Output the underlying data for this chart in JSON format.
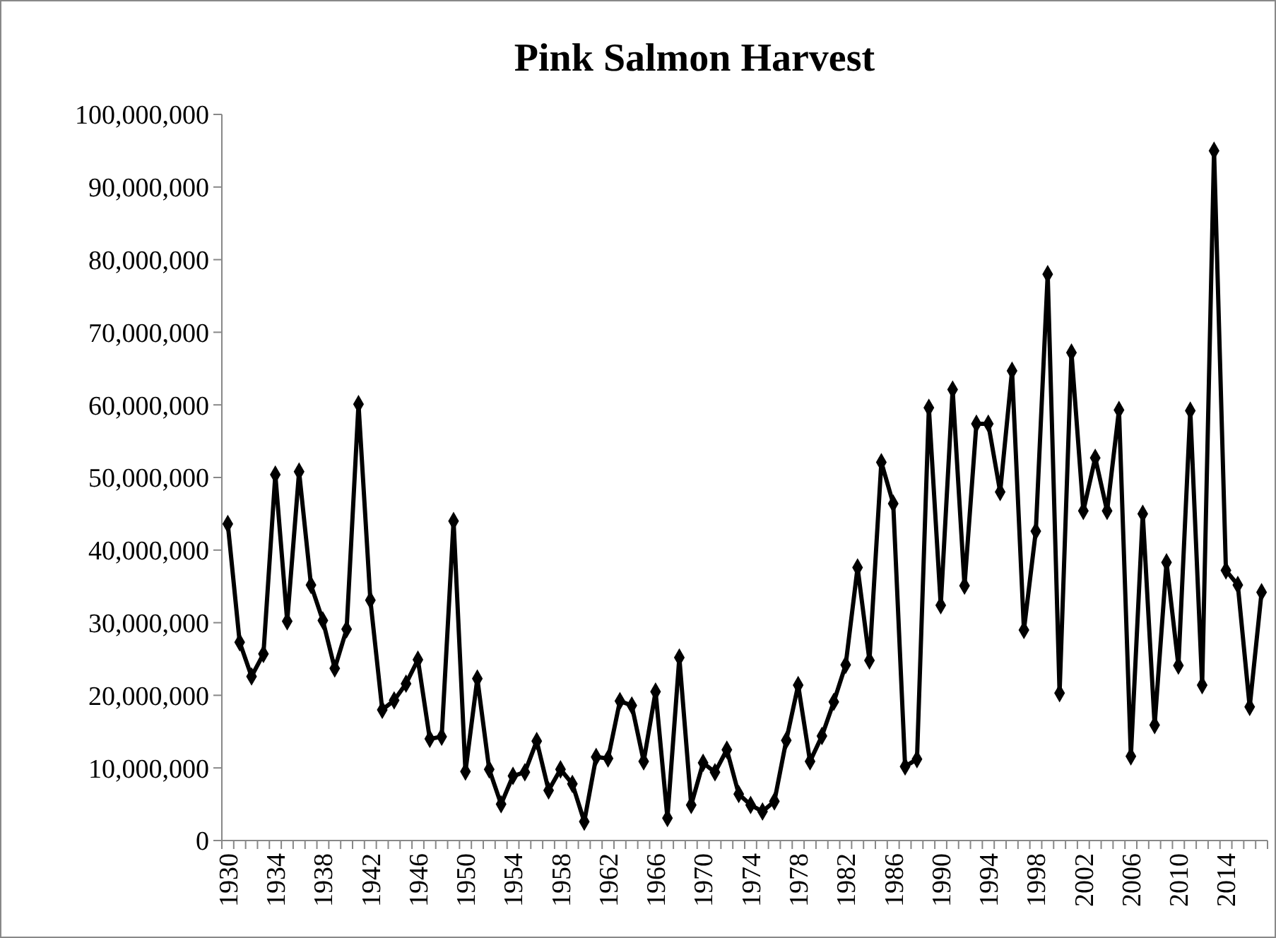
{
  "chart_data": {
    "type": "line",
    "title": "Pink Salmon Harvest",
    "categories": [
      "1930",
      null,
      null,
      null,
      "1934",
      null,
      null,
      null,
      "1938",
      null,
      null,
      null,
      "1942",
      null,
      null,
      null,
      "1946",
      null,
      null,
      null,
      "1950",
      null,
      null,
      null,
      "1954",
      null,
      null,
      null,
      "1958",
      null,
      null,
      null,
      "1962",
      null,
      null,
      null,
      "1966",
      null,
      null,
      null,
      "1970",
      null,
      null,
      null,
      "1974",
      null,
      null,
      null,
      "1978",
      null,
      null,
      null,
      "1982",
      null,
      null,
      null,
      "1986",
      null,
      null,
      null,
      "1990",
      null,
      null,
      null,
      "1994",
      null,
      null,
      null,
      "1998",
      null,
      null,
      null,
      "2002",
      null,
      null,
      null,
      "2006",
      null,
      null,
      null,
      "2010",
      null,
      null,
      null,
      "2014",
      null,
      null,
      null
    ],
    "series": [
      {
        "color": "#000000",
        "values": [
          43600000,
          27300000,
          22600000,
          25700000,
          50400000,
          30200000,
          50800000,
          35200000,
          30300000,
          23700000,
          29100000,
          60100000,
          33100000,
          18000000,
          19300000,
          21600000,
          24900000,
          14000000,
          14300000,
          44000000,
          9500000,
          22300000,
          9800000,
          5000000,
          8900000,
          9400000,
          13700000,
          6900000,
          9800000,
          7800000,
          2600000,
          11500000,
          11300000,
          19200000,
          18600000,
          10900000,
          20500000,
          3100000,
          25200000,
          4900000,
          10700000,
          9400000,
          12500000,
          6400000,
          4900000,
          4000000,
          5400000,
          13800000,
          21400000,
          10900000,
          14400000,
          19100000,
          24200000,
          37600000,
          24800000,
          52100000,
          46400000,
          10200000,
          11200000,
          59600000,
          32400000,
          62100000,
          35100000,
          57400000,
          57400000,
          48000000,
          64700000,
          29000000,
          42600000,
          78000000,
          20300000,
          67200000,
          45400000,
          52700000,
          45400000,
          59300000,
          11600000,
          45000000,
          15900000,
          38300000,
          24100000,
          59200000,
          21400000,
          95000000,
          37200000,
          35200000,
          18400000,
          34200000
        ]
      }
    ],
    "ylim": [
      0,
      100000000
    ],
    "yticks": [
      {
        "value": 0,
        "label": "0"
      },
      {
        "value": 10000000,
        "label": "10,000,000"
      },
      {
        "value": 20000000,
        "label": "20,000,000"
      },
      {
        "value": 30000000,
        "label": "30,000,000"
      },
      {
        "value": 40000000,
        "label": "40,000,000"
      },
      {
        "value": 50000000,
        "label": "50,000,000"
      },
      {
        "value": 60000000,
        "label": "60,000,000"
      },
      {
        "value": 70000000,
        "label": "70,000,000"
      },
      {
        "value": 80000000,
        "label": "80,000,000"
      },
      {
        "value": 90000000,
        "label": "90,000,000"
      },
      {
        "value": 100000000,
        "label": "100,000,000"
      }
    ],
    "grid": false,
    "marker": "diamond",
    "line_style": "solid"
  }
}
